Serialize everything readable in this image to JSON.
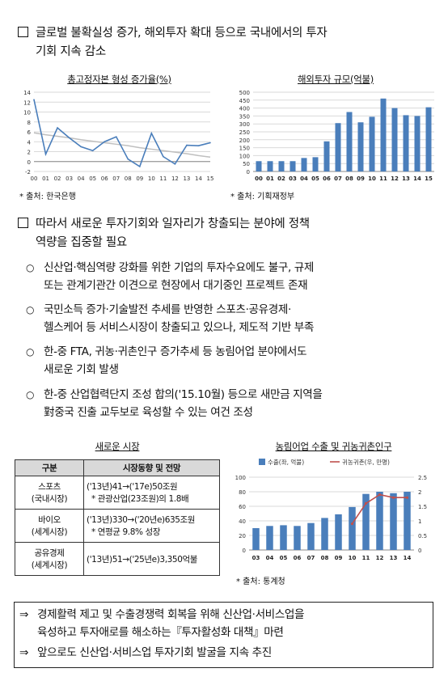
{
  "section1": {
    "heading_line1": "글로벌 불확실성 증가, 해외투자 확대 등으로 국내에서의 투자",
    "heading_line2": "기회 지속 감소"
  },
  "charts": [
    {
      "type": "line",
      "title": "총고정자본 형성 증가율(%)",
      "x": [
        "00",
        "01",
        "02",
        "03",
        "04",
        "05",
        "06",
        "07",
        "08",
        "09",
        "10",
        "11",
        "12",
        "13",
        "14",
        "15"
      ],
      "series": [
        {
          "values": [
            12.5,
            1.5,
            6.8,
            4.8,
            3,
            2.2,
            4,
            5,
            0.5,
            -1,
            5.7,
            1,
            -0.5,
            3.3,
            3.2,
            3.8
          ]
        },
        {
          "values": [
            5.8,
            5.4,
            5.1,
            4.8,
            4.4,
            4.1,
            3.8,
            3.5,
            3.2,
            2.8,
            2.5,
            2.2,
            1.9,
            1.6,
            1.2,
            0.9
          ]
        }
      ],
      "trendline": true,
      "ylim": [
        -2,
        14
      ],
      "yticks": [
        -2,
        0,
        2,
        4,
        6,
        8,
        10,
        12,
        14
      ],
      "grid": true,
      "source": "* 출처: 한국은행",
      "colors": {
        "series": "#4a7ebb",
        "trend": "#bfbfbf"
      }
    },
    {
      "type": "bar",
      "title": "해외투자 규모(억불)",
      "categories": [
        "00",
        "01",
        "02",
        "03",
        "04",
        "05",
        "06",
        "07",
        "08",
        "09",
        "10",
        "11",
        "12",
        "13",
        "14",
        "15"
      ],
      "values": [
        65,
        65,
        65,
        65,
        85,
        90,
        190,
        305,
        375,
        310,
        345,
        460,
        400,
        355,
        350,
        405
      ],
      "ylim": [
        0,
        500
      ],
      "yticks": [
        0,
        50,
        100,
        150,
        200,
        250,
        300,
        350,
        400,
        450,
        500
      ],
      "grid": true,
      "source": "* 출처: 기획재정부",
      "colors": {
        "bar": "#4a7ebb"
      }
    },
    {
      "type": "bar",
      "title": "농림어업 수출 및 귀농귀촌인구",
      "categories": [
        "03",
        "04",
        "05",
        "06",
        "07",
        "08",
        "09",
        "10",
        "11",
        "12",
        "13",
        "14"
      ],
      "series": [
        {
          "name": "수출(좌, 억불)",
          "values": [
            30,
            33,
            34,
            33,
            37,
            44,
            49,
            59,
            77,
            80,
            78,
            80
          ]
        },
        {
          "name": "귀농귀촌(우, 만명)",
          "values": [
            null,
            null,
            null,
            null,
            null,
            null,
            null,
            0.9,
            1.6,
            1.9,
            1.8,
            1.8
          ]
        }
      ],
      "ylim": [
        0,
        100
      ],
      "yticks": [
        0,
        20,
        40,
        60,
        80,
        100
      ],
      "y2lim": [
        0,
        2.5
      ],
      "y2ticks": [
        "0",
        "0.5",
        "1",
        "1.5",
        "2",
        "2.5"
      ],
      "grid": true,
      "legend": "top",
      "source": "* 출처: 통계청",
      "colors": {
        "bar": "#4a7ebb",
        "line": "#c0504d"
      }
    }
  ],
  "section2": {
    "heading_line1": "따라서 새로운 투자기회와 일자리가 창출되는 분야에 정책",
    "heading_line2": "역량을 집중할 필요",
    "bullets": [
      {
        "line1": "신산업·핵심역량 강화를 위한 기업의 투자수요에도 불구, 규제",
        "line2": "또는 관계기관간 이견으로 현장에서 대기중인 프로젝트 존재"
      },
      {
        "line1": "국민소득 증가·기술발전 추세를 반영한 스포츠·공유경제·",
        "line2": "헬스케어 등 서비스시장이 창출되고 있으나, 제도적 기반 부족"
      },
      {
        "line1": "한-중 FTA, 귀농·귀촌인구 증가추세 등 농림어업 분야에서도",
        "line2": "새로운 기회 발생"
      },
      {
        "line1": "한-중 산업협력단지 조성 합의('15.10월) 등으로 새만금 지역을",
        "line2": "對중국 진출 교두보로 육성할 수 있는 여건 조성"
      }
    ]
  },
  "market_table": {
    "title": "새로운 시장",
    "headers": [
      "구분",
      "시장동향 및 전망"
    ],
    "rows": [
      {
        "cat1": "스포츠",
        "cat2": "(국내시장)",
        "v1": "('13년)41→('17e)50조원",
        "v2": "* 관광산업(23조원)의 1.8배"
      },
      {
        "cat1": "바이오",
        "cat2": "(세계시장)",
        "v1": "('13년)330→('20년e)635조원",
        "v2": "* 연평균 9.8% 성장"
      },
      {
        "cat1": "공유경제",
        "cat2": "(세계시장)",
        "v1": "('13년)51→('25년e)3,350억불",
        "v2": ""
      }
    ]
  },
  "conclusion": {
    "line1": "경제활력 제고 및 수출경쟁력 회복을 위해 신산업·서비스업을",
    "line2": "육성하고 투자애로를 해소하는『투자활성화 대책』마련",
    "line3": "앞으로도 신산업·서비스업 투자기회 발굴을 지속 추진",
    "arrow": "⇒"
  }
}
